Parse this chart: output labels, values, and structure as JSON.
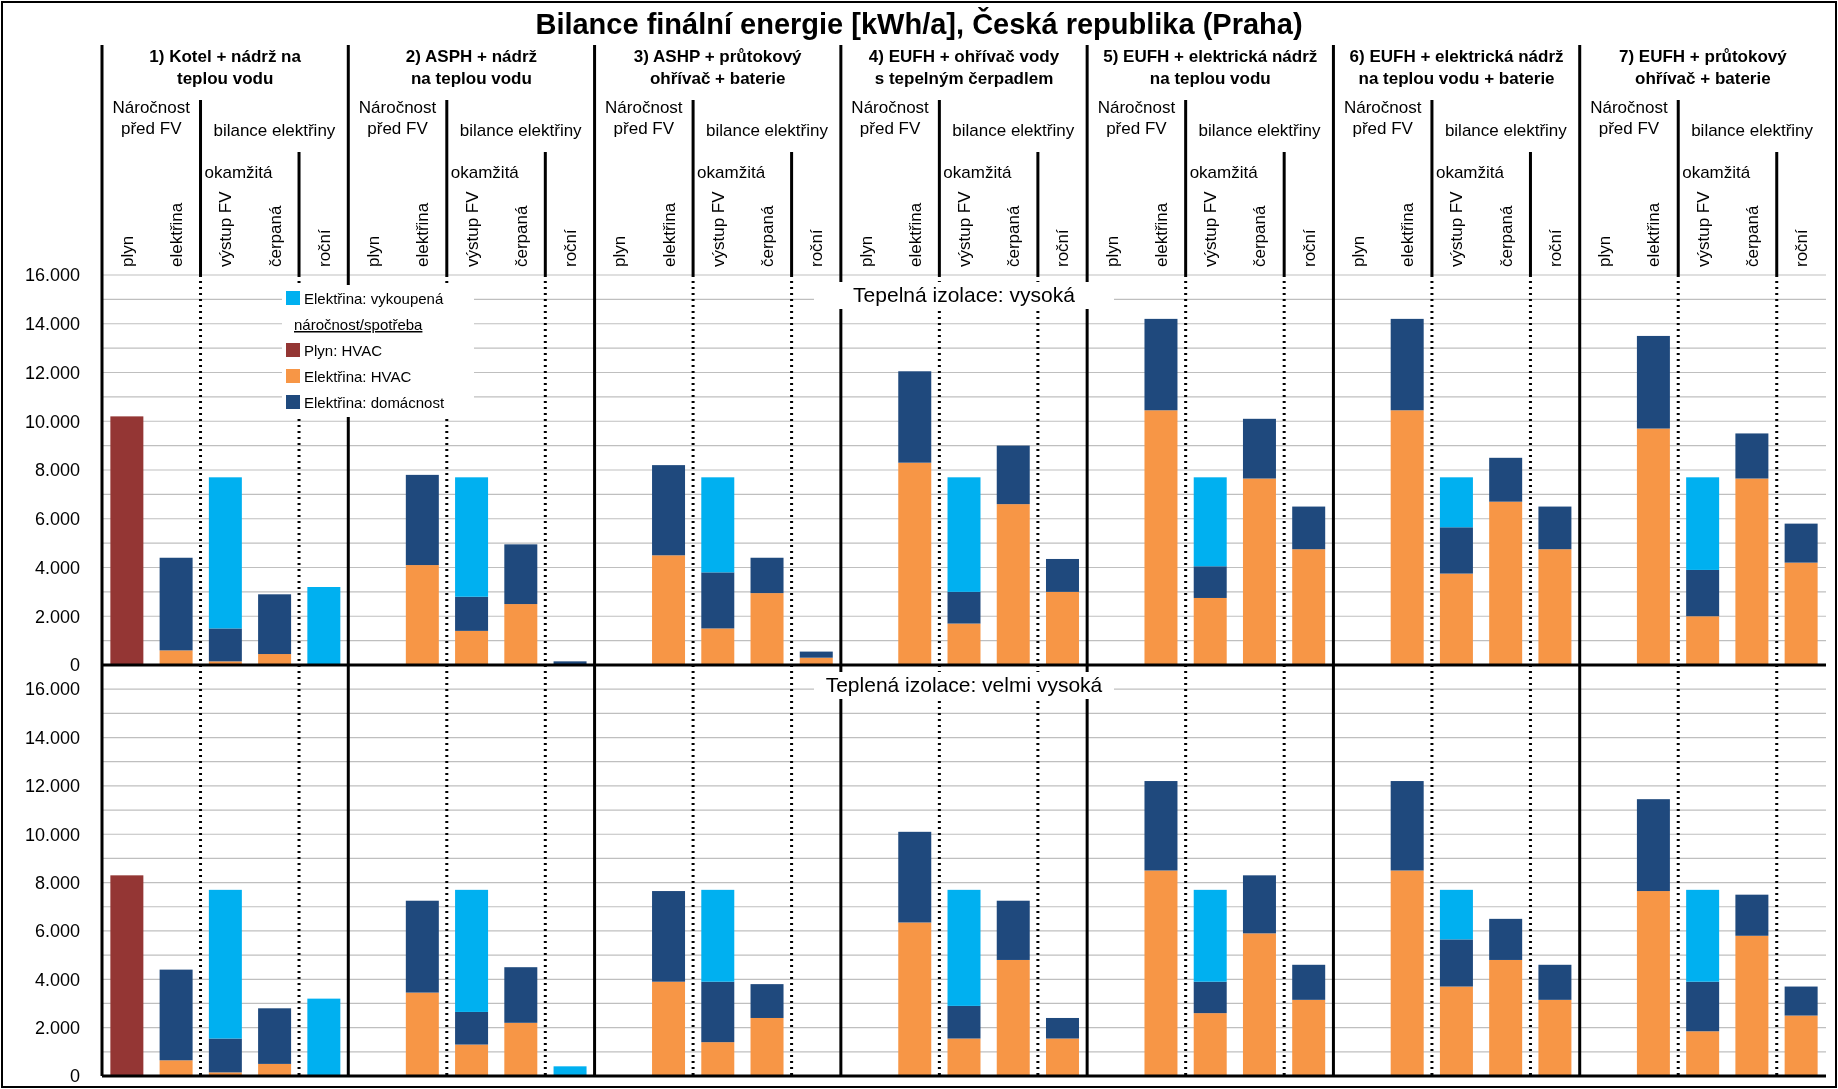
{
  "chart_data": [
    {
      "type": "bar",
      "stacked": true,
      "title": "Bilance finální energie [kWh/a], Česká republika (Praha)",
      "subtitle": "Tepelná izolace: vysoká",
      "categories": [
        "plyn",
        "elektřina",
        "výstup FV",
        "čerpaná",
        "roční",
        "plyn",
        "elektřina",
        "výstup FV",
        "čerpaná",
        "roční",
        "plyn",
        "elektřina",
        "výstup FV",
        "čerpaná",
        "roční",
        "plyn",
        "elektřina",
        "výstup FV",
        "čerpaná",
        "roční",
        "plyn",
        "elektřina",
        "výstup FV",
        "čerpaná",
        "roční",
        "plyn",
        "elektřina",
        "výstup FV",
        "čerpaná",
        "roční",
        "plyn",
        "elektřina",
        "výstup FV",
        "čerpaná",
        "roční"
      ],
      "annotations": [
        "1) Kotel + nádrž na\nteplou vodu",
        "2) ASPH + nádrž\nna teplou vodu",
        "3) ASHP + průtokový\nohřívač + baterie",
        "4) EUFH + ohřívač vody\ns tepelným čerpadlem",
        "5) EUFH + elektrická nádrž\nna teplou vodu",
        "6) EUFH + elektrická nádrž\nna teplou vodu + baterie",
        "7) EUFH + průtokový\nohřívač + baterie",
        "Náročnost\npřed FV",
        "bilance elektřiny",
        "okamžitá",
        "Náročnost\npřed FV",
        "bilance elektřiny",
        "okamžitá",
        "Náročnost\npřed FV",
        "bilance elektřiny",
        "okamžitá",
        "Náročnost\npřed FV",
        "bilance elektřiny",
        "okamžitá",
        "Náročnost\npřed FV",
        "bilance elektřiny",
        "okamžitá",
        "Náročnost\npřed FV",
        "bilance elektřiny",
        "okamžitá",
        "Náročnost\npřed FV",
        "bilance elektřiny",
        "okamžitá"
      ],
      "legend_title": "náročnost/spotřeba",
      "series": [
        {
          "name": "Plyn: HVAC",
          "color": "#943634",
          "values": [
            10200,
            null,
            null,
            null,
            null,
            null,
            null,
            null,
            null,
            null,
            null,
            null,
            null,
            null,
            null,
            null,
            null,
            null,
            null,
            null,
            null,
            null,
            null,
            null,
            null,
            null,
            null,
            null,
            null,
            null,
            null,
            null,
            null,
            null,
            null
          ]
        },
        {
          "name": "Elektřina: HVAC",
          "color": "#f79646",
          "values": [
            null,
            600,
            150,
            450,
            null,
            null,
            4100,
            1400,
            2500,
            null,
            null,
            4500,
            1500,
            2950,
            300,
            null,
            8300,
            1700,
            6600,
            3000,
            null,
            10450,
            2750,
            7650,
            4750,
            null,
            10450,
            3750,
            6700,
            4750,
            null,
            9700,
            2000,
            7650,
            4200
          ]
        },
        {
          "name": "Elektřina: domácnost",
          "color": "#1f497d",
          "values": [
            null,
            3800,
            1350,
            2450,
            null,
            null,
            3700,
            1400,
            2450,
            150,
            null,
            3700,
            2300,
            1450,
            250,
            null,
            3750,
            1300,
            2400,
            1350,
            null,
            3750,
            1300,
            2450,
            1750,
            null,
            3750,
            1900,
            1800,
            1750,
            null,
            3800,
            1900,
            1850,
            1600
          ]
        },
        {
          "name": "Elektřina: vykoupená",
          "color": "#00b0f0",
          "values": [
            null,
            null,
            6200,
            null,
            3200,
            null,
            null,
            4900,
            null,
            null,
            null,
            null,
            3900,
            null,
            null,
            null,
            null,
            4700,
            null,
            null,
            null,
            null,
            3650,
            null,
            null,
            null,
            null,
            2050,
            null,
            null,
            null,
            null,
            3800,
            null,
            null
          ]
        }
      ],
      "ylim": [
        0,
        16000
      ],
      "yticks": [
        0,
        {
          "value": 1000,
          "label": null
        },
        {
          "value": 2000,
          "label": "2.000"
        },
        {
          "value": 3000,
          "label": null
        },
        {
          "value": 4000,
          "label": "4.000"
        },
        {
          "value": 5000,
          "label": null
        },
        {
          "value": 6000,
          "label": "6.000"
        },
        {
          "value": 7000,
          "label": null
        },
        {
          "value": 8000,
          "label": "8.000"
        },
        {
          "value": 9000,
          "label": null
        },
        {
          "value": 10000,
          "label": "10.000"
        },
        {
          "value": 11000,
          "label": null
        },
        {
          "value": 12000,
          "label": "12.000"
        },
        {
          "value": 13000,
          "label": null
        },
        {
          "value": 14000,
          "label": "14.000"
        },
        {
          "value": 15000,
          "label": null
        },
        {
          "value": 16000,
          "label": "16.000"
        }
      ],
      "grid": "y",
      "legend": "top left"
    },
    {
      "type": "bar",
      "stacked": true,
      "subtitle": "Teplená izolace: velmi vysoká",
      "categories": [
        null,
        null,
        null,
        null,
        null,
        null,
        null,
        null,
        null,
        null,
        null,
        null,
        null,
        null,
        null,
        null,
        null,
        null,
        null,
        null,
        null,
        null,
        null,
        null,
        null,
        null,
        null,
        null,
        null,
        null,
        null,
        null,
        null,
        null,
        null
      ],
      "series": [
        {
          "color": "#943634",
          "values": [
            8300,
            null,
            null,
            null,
            null,
            null,
            null,
            null,
            null,
            null,
            null,
            null,
            null,
            null,
            null,
            null,
            null,
            null,
            null,
            null,
            null,
            null,
            null,
            null,
            null,
            null,
            null,
            null,
            null,
            null,
            null,
            null,
            null,
            null,
            null
          ]
        },
        {
          "color": "#f79646",
          "values": [
            null,
            650,
            150,
            500,
            null,
            null,
            3450,
            1300,
            2200,
            null,
            null,
            3900,
            1400,
            2400,
            null,
            null,
            6350,
            1550,
            4800,
            1550,
            null,
            8500,
            2600,
            5900,
            3150,
            null,
            8500,
            3700,
            4800,
            3150,
            null,
            7650,
            1850,
            5800,
            2500
          ]
        },
        {
          "color": "#1f497d",
          "values": [
            null,
            3750,
            1400,
            2300,
            null,
            null,
            3800,
            1350,
            2300,
            null,
            null,
            3750,
            2500,
            1400,
            null,
            null,
            3750,
            1350,
            2450,
            850,
            null,
            3700,
            1300,
            2400,
            1450,
            null,
            3700,
            1950,
            1700,
            1450,
            null,
            3800,
            2050,
            1700,
            1200
          ]
        },
        {
          "color": "#00b0f0",
          "values": [
            null,
            null,
            6150,
            null,
            3200,
            null,
            null,
            5050,
            null,
            400,
            null,
            null,
            3800,
            null,
            null,
            null,
            null,
            4800,
            null,
            null,
            null,
            null,
            3800,
            null,
            null,
            null,
            null,
            2050,
            null,
            null,
            null,
            null,
            3800,
            null,
            null
          ]
        }
      ],
      "ylim": [
        0,
        17000
      ],
      "yticks": [
        0,
        {
          "value": 1000,
          "label": null
        },
        {
          "value": 2000,
          "label": "2.000"
        },
        {
          "value": 3000,
          "label": null
        },
        {
          "value": 4000,
          "label": "4.000"
        },
        {
          "value": 5000,
          "label": null
        },
        {
          "value": 6000,
          "label": "6.000"
        },
        {
          "value": 7000,
          "label": null
        },
        {
          "value": 8000,
          "label": "8.000"
        },
        {
          "value": 9000,
          "label": null
        },
        {
          "value": 10000,
          "label": "10.000"
        },
        {
          "value": 11000,
          "label": null
        },
        {
          "value": 12000,
          "label": "12.000"
        },
        {
          "value": 13000,
          "label": null
        },
        {
          "value": 14000,
          "label": "14.000"
        },
        {
          "value": 15000,
          "label": null
        },
        {
          "value": 16000,
          "label": "16.000"
        }
      ],
      "grid": "y",
      "tick_labels": "y"
    }
  ]
}
